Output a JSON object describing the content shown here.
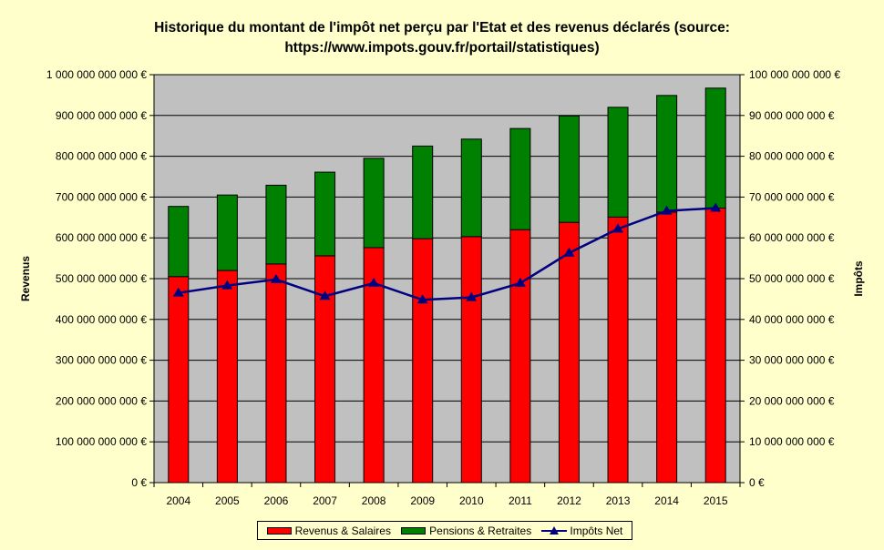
{
  "chart_data": {
    "type": "bar",
    "title_lines": [
      "Historique du montant de l'impôt net perçu par l'Etat et des revenus déclarés (source:",
      "https://www.impots.gouv.fr/portail/statistiques)"
    ],
    "categories": [
      "2004",
      "2005",
      "2006",
      "2007",
      "2008",
      "2009",
      "2010",
      "2011",
      "2012",
      "2013",
      "2014",
      "2015"
    ],
    "stacked": true,
    "series": [
      {
        "name": "Revenus & Salaires",
        "kind": "bar",
        "axis": "left",
        "color": "#ff0000",
        "values": [
          505000000000,
          520000000000,
          536000000000,
          556000000000,
          576000000000,
          598000000000,
          603000000000,
          620000000000,
          638000000000,
          651000000000,
          663000000000,
          673000000000
        ]
      },
      {
        "name": "Pensions & Retraites",
        "kind": "bar",
        "axis": "left",
        "color": "#008000",
        "values": [
          172000000000,
          185000000000,
          193000000000,
          205000000000,
          219000000000,
          227000000000,
          239000000000,
          248000000000,
          261000000000,
          269000000000,
          286000000000,
          294000000000
        ]
      },
      {
        "name": "Impôts Net",
        "kind": "line",
        "axis": "right",
        "color": "#000080",
        "marker": "triangle",
        "values": [
          46500000000,
          48300000000,
          49800000000,
          45700000000,
          48900000000,
          44800000000,
          45400000000,
          48900000000,
          56300000000,
          62200000000,
          66600000000,
          67300000000
        ]
      }
    ],
    "y_left": {
      "label": "Revenus",
      "min": 0,
      "max": 1000000000000,
      "step": 100000000000,
      "tick_labels": [
        "0 €",
        "100 000 000 000 €",
        "200 000 000 000 €",
        "300 000 000 000 €",
        "400 000 000 000 €",
        "500 000 000 000 €",
        "600 000 000 000 €",
        "700 000 000 000 €",
        "800 000 000 000 €",
        "900 000 000 000 €",
        "1 000 000 000 000 €"
      ]
    },
    "y_right": {
      "label": "Impôts",
      "min": 0,
      "max": 100000000000,
      "step": 10000000000,
      "tick_labels": [
        "0 €",
        "10 000 000 000 €",
        "20 000 000 000 €",
        "30 000 000 000 €",
        "40 000 000 000 €",
        "50 000 000 000 €",
        "60 000 000 000 €",
        "70 000 000 000 €",
        "80 000 000 000 €",
        "90 000 000 000 €",
        "100 000 000 000 €"
      ]
    },
    "grid": true,
    "plot_background": "#c0c0c0",
    "page_background": "#ffffcc",
    "legend_position": "bottom"
  }
}
